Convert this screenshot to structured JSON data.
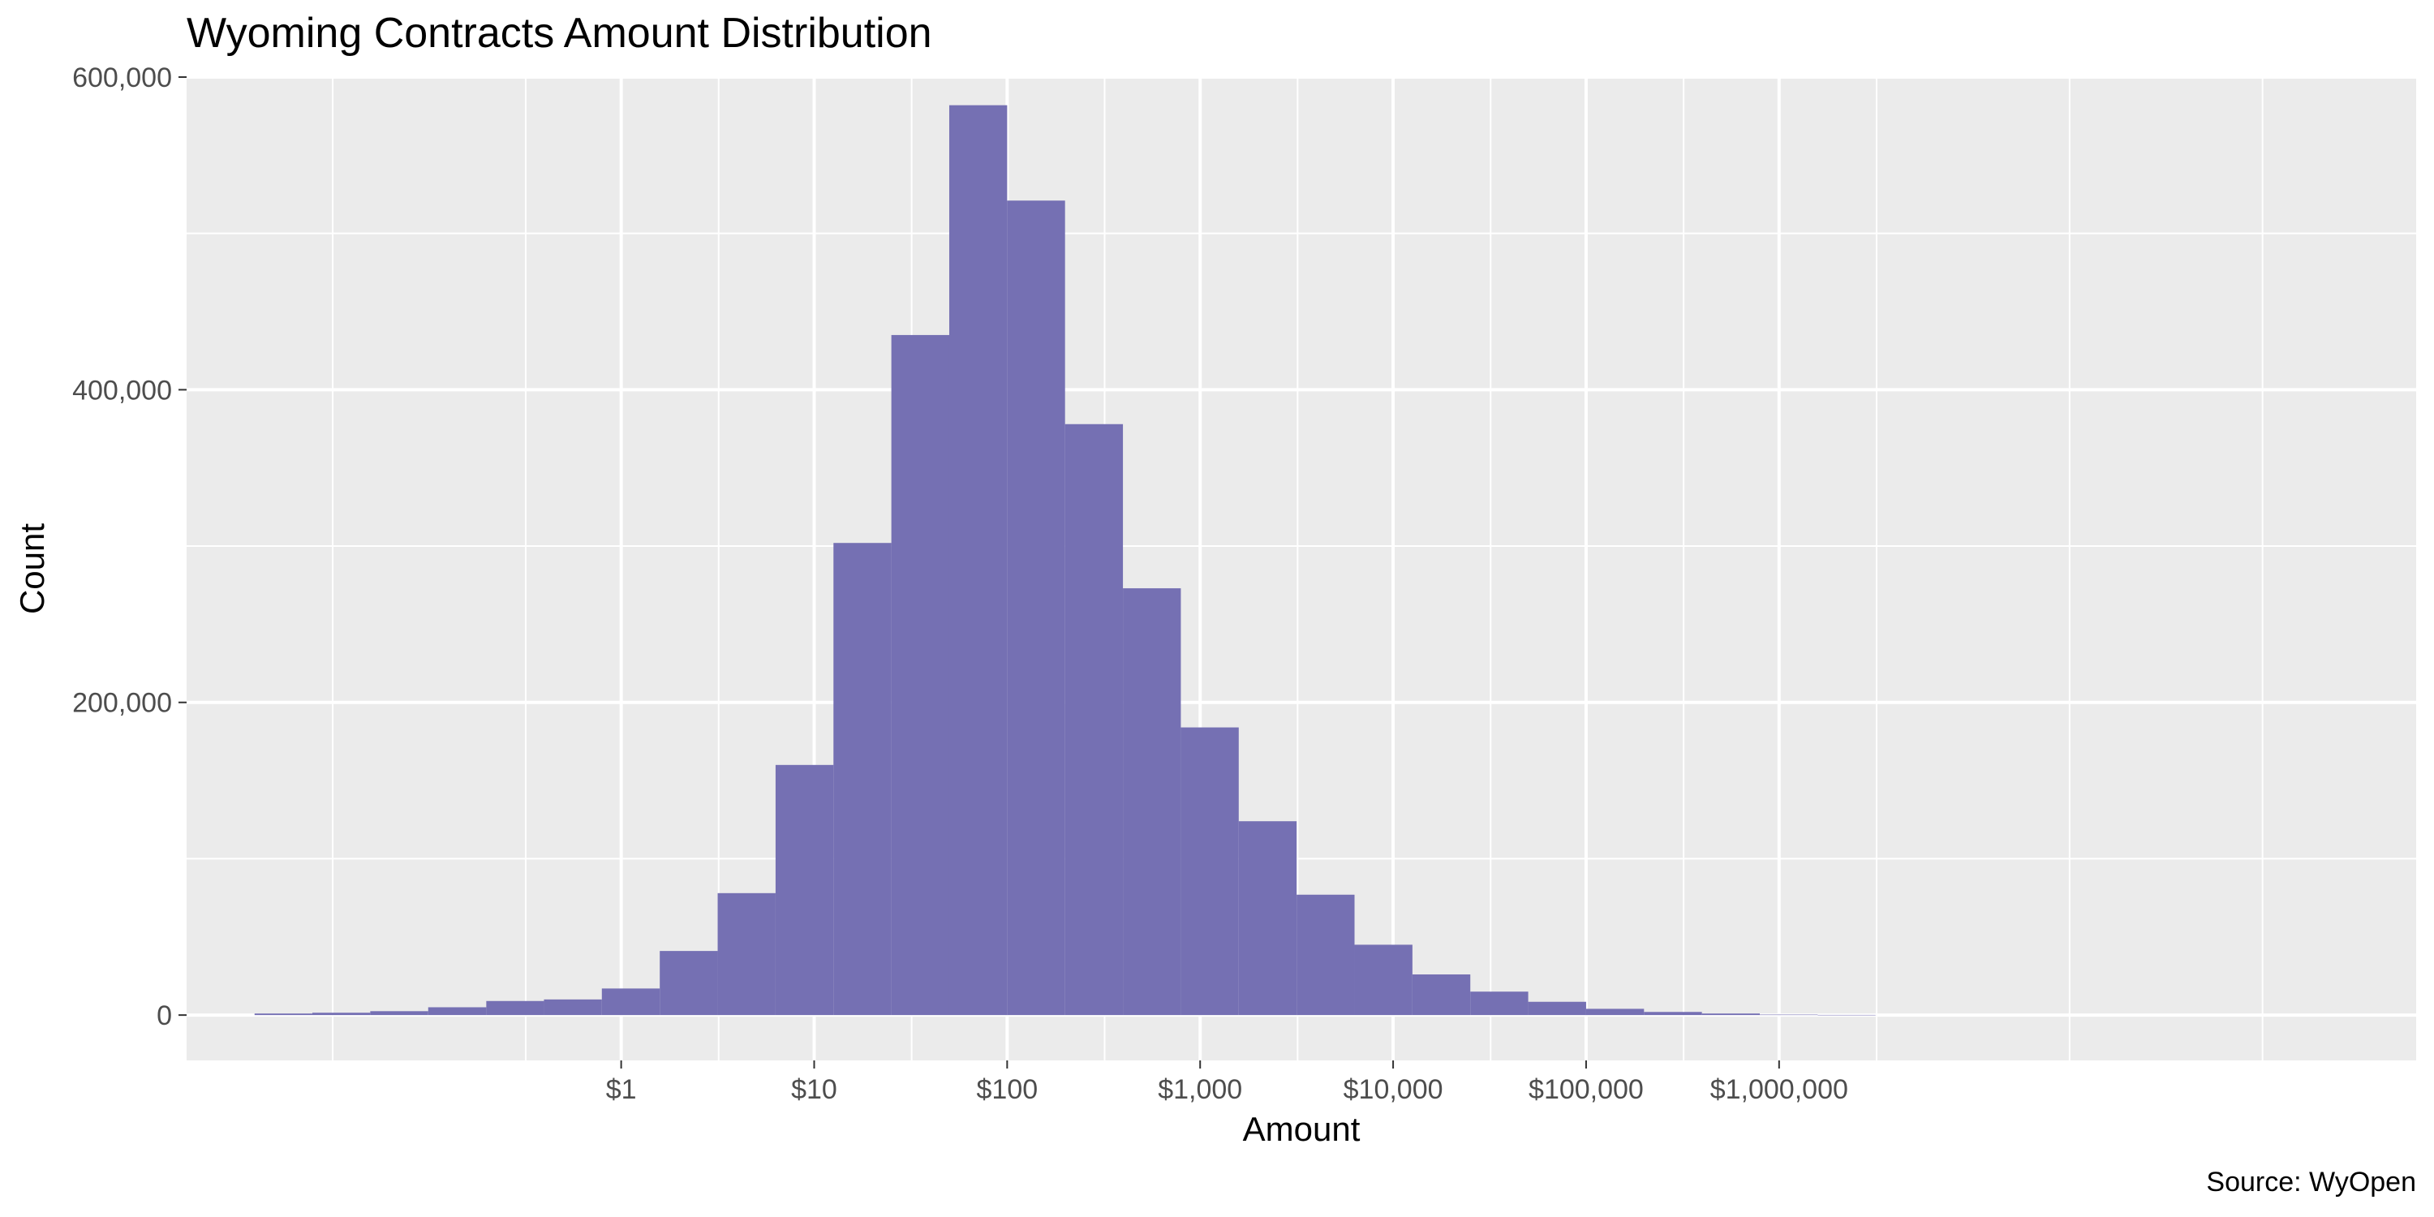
{
  "chart_data": {
    "type": "bar",
    "title": "Wyoming Contracts Amount Distribution",
    "xlabel": "Amount",
    "ylabel": "Count",
    "caption": "Source: WyOpen",
    "x_scale": "log10",
    "xlim": [
      0.0056,
      2000000000
    ],
    "ylim": [
      -29000,
      600000
    ],
    "x_ticks": [
      {
        "value": 1,
        "label": "$1"
      },
      {
        "value": 10,
        "label": "$10"
      },
      {
        "value": 100,
        "label": "$100"
      },
      {
        "value": 1000,
        "label": "$1,000"
      },
      {
        "value": 10000,
        "label": "$10,000"
      },
      {
        "value": 100000,
        "label": "$100,000"
      },
      {
        "value": 1000000,
        "label": "$1,000,000"
      }
    ],
    "x_minor_ticks": [
      0.032,
      0.32,
      3.2,
      32,
      320,
      3200,
      32000,
      320000,
      3200000,
      32000000,
      320000000
    ],
    "y_ticks": [
      {
        "value": 0,
        "label": "0"
      },
      {
        "value": 200000,
        "label": "200,000"
      },
      {
        "value": 400000,
        "label": "400,000"
      },
      {
        "value": 600000,
        "label": "600,000"
      }
    ],
    "y_minor_ticks": [
      100000,
      300000,
      500000
    ],
    "bin_edges": [
      0.0126,
      0.0251,
      0.0501,
      0.1,
      0.2,
      0.398,
      0.794,
      1.585,
      3.162,
      6.31,
      12.59,
      25.12,
      50.12,
      100,
      199.5,
      398.1,
      794.3,
      1585,
      3162,
      6310,
      12589,
      25119,
      50119,
      100000,
      199526,
      398107,
      794328,
      1584893,
      3162278
    ],
    "values": [
      1000,
      1500,
      2500,
      5000,
      9000,
      10000,
      17000,
      41000,
      78000,
      160000,
      302000,
      435000,
      582000,
      521000,
      378000,
      273000,
      184000,
      124000,
      77000,
      45000,
      26000,
      15000,
      8500,
      4000,
      2000,
      1000,
      300,
      100
    ],
    "bar_color": "#7570b3",
    "panel_color": "#ebebeb",
    "grid": true,
    "legend": "none"
  }
}
